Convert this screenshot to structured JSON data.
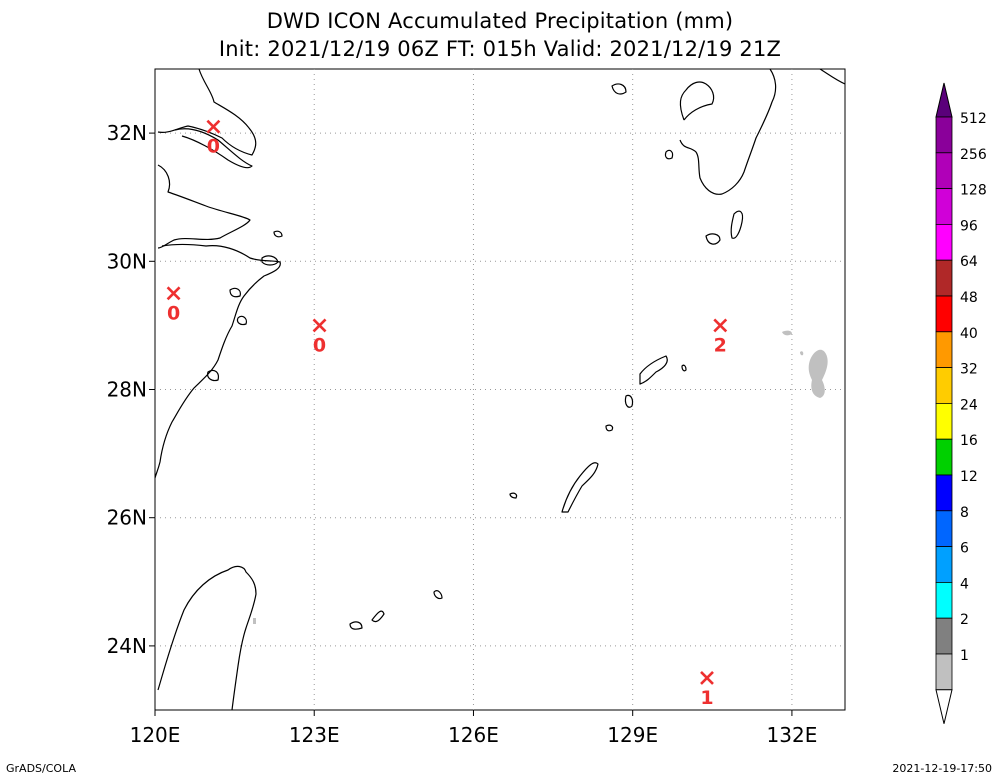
{
  "title": {
    "line1": "DWD ICON Accumulated Precipitation (mm)",
    "line2": "Init: 2021/12/19 06Z  FT: 015h  Valid: 2021/12/19 21Z"
  },
  "map": {
    "lon_range": [
      120,
      133
    ],
    "lat_range": [
      23,
      33
    ],
    "lon_ticks": [
      "120E",
      "123E",
      "126E",
      "129E",
      "132E"
    ],
    "lat_ticks": [
      "32N",
      "30N",
      "28N",
      "26N",
      "24N"
    ],
    "grid": "dotted"
  },
  "stations": [
    {
      "lon": 121.1,
      "lat": 32.1,
      "value": "0"
    },
    {
      "lon": 120.35,
      "lat": 29.5,
      "value": "0"
    },
    {
      "lon": 123.1,
      "lat": 29.0,
      "value": "0"
    },
    {
      "lon": 130.65,
      "lat": 29.0,
      "value": "2"
    },
    {
      "lon": 130.4,
      "lat": 23.5,
      "value": "1"
    }
  ],
  "colorbar": {
    "labels": [
      "512",
      "256",
      "128",
      "96",
      "64",
      "48",
      "40",
      "32",
      "24",
      "16",
      "12",
      "8",
      "6",
      "4",
      "2",
      "1"
    ],
    "colors": [
      "#8a009a",
      "#b000b8",
      "#d000d8",
      "#ff00ff",
      "#b02828",
      "#ff0000",
      "#ff9900",
      "#ffcc00",
      "#ffff00",
      "#00d000",
      "#0000ff",
      "#0066ff",
      "#00a0ff",
      "#00ffff",
      "#808080",
      "#c0c0c0"
    ],
    "top_arrow_color": "#5a007a",
    "bottom_arrow_color": "#ffffff"
  },
  "colors": {
    "station_marker": "#ee3030",
    "precip_light": "#c0c0c0",
    "coastline": "#000000"
  },
  "footer": {
    "left": "GrADS/COLA",
    "right": "2021-12-19-17:50"
  }
}
